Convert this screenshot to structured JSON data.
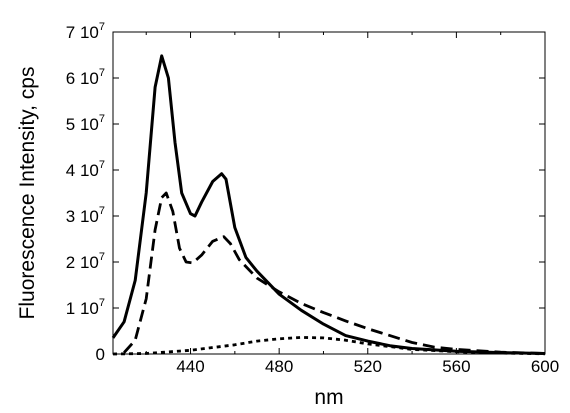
{
  "chart_data": {
    "type": "line",
    "title": "",
    "xlabel": "nm",
    "ylabel": "Fluorescence Intensity, cps",
    "xlim": [
      405,
      600
    ],
    "ylim": [
      0,
      70000000
    ],
    "x_ticks": [
      440,
      480,
      520,
      560,
      600
    ],
    "x_tick_labels": [
      "440",
      "480",
      "520",
      "560",
      "600"
    ],
    "y_ticks": [
      0,
      10000000,
      20000000,
      30000000,
      40000000,
      50000000,
      60000000,
      70000000
    ],
    "y_tick_labels": [
      {
        "base": "0",
        "exp": ""
      },
      {
        "base": "1 10",
        "exp": "7"
      },
      {
        "base": "2 10",
        "exp": "7"
      },
      {
        "base": "3 10",
        "exp": "7"
      },
      {
        "base": "4 10",
        "exp": "7"
      },
      {
        "base": "5 10",
        "exp": "7"
      },
      {
        "base": "6 10",
        "exp": "7"
      },
      {
        "base": "7 10",
        "exp": "7"
      }
    ],
    "grid": false,
    "legend": "none",
    "series": [
      {
        "style": "solid",
        "color": "#000000",
        "points": [
          [
            405,
            3500000
          ],
          [
            410,
            7000000
          ],
          [
            415,
            16000000
          ],
          [
            420,
            35000000
          ],
          [
            424,
            58000000
          ],
          [
            427,
            64800000
          ],
          [
            430,
            60000000
          ],
          [
            433,
            46000000
          ],
          [
            436,
            35000000
          ],
          [
            440,
            30500000
          ],
          [
            442,
            30000000
          ],
          [
            445,
            33000000
          ],
          [
            450,
            37500000
          ],
          [
            454,
            39200000
          ],
          [
            456,
            38000000
          ],
          [
            460,
            27500000
          ],
          [
            465,
            21000000
          ],
          [
            470,
            18000000
          ],
          [
            480,
            13000000
          ],
          [
            490,
            9500000
          ],
          [
            500,
            6500000
          ],
          [
            510,
            4000000
          ],
          [
            520,
            2800000
          ],
          [
            530,
            1800000
          ],
          [
            540,
            1200000
          ],
          [
            560,
            600000
          ],
          [
            580,
            300000
          ],
          [
            600,
            100000
          ]
        ]
      },
      {
        "style": "dashed",
        "color": "#000000",
        "points": [
          [
            410,
            300000
          ],
          [
            415,
            3000000
          ],
          [
            420,
            12000000
          ],
          [
            424,
            27000000
          ],
          [
            427,
            34000000
          ],
          [
            429,
            35000000
          ],
          [
            432,
            31000000
          ],
          [
            435,
            23000000
          ],
          [
            438,
            20000000
          ],
          [
            441,
            19800000
          ],
          [
            445,
            21500000
          ],
          [
            450,
            24500000
          ],
          [
            455,
            25500000
          ],
          [
            458,
            24000000
          ],
          [
            462,
            20500000
          ],
          [
            470,
            16500000
          ],
          [
            480,
            13500000
          ],
          [
            490,
            11000000
          ],
          [
            500,
            9000000
          ],
          [
            510,
            7200000
          ],
          [
            520,
            5500000
          ],
          [
            530,
            4000000
          ],
          [
            540,
            2500000
          ],
          [
            550,
            1500000
          ],
          [
            560,
            1000000
          ],
          [
            580,
            400000
          ],
          [
            600,
            100000
          ]
        ]
      },
      {
        "style": "dotted",
        "color": "#000000",
        "points": [
          [
            405,
            0
          ],
          [
            420,
            100000
          ],
          [
            440,
            800000
          ],
          [
            460,
            2000000
          ],
          [
            470,
            2800000
          ],
          [
            480,
            3300000
          ],
          [
            490,
            3600000
          ],
          [
            500,
            3500000
          ],
          [
            510,
            3000000
          ],
          [
            520,
            2200000
          ],
          [
            530,
            1600000
          ],
          [
            540,
            1000000
          ],
          [
            560,
            500000
          ],
          [
            580,
            200000
          ],
          [
            600,
            50000
          ]
        ]
      }
    ]
  }
}
